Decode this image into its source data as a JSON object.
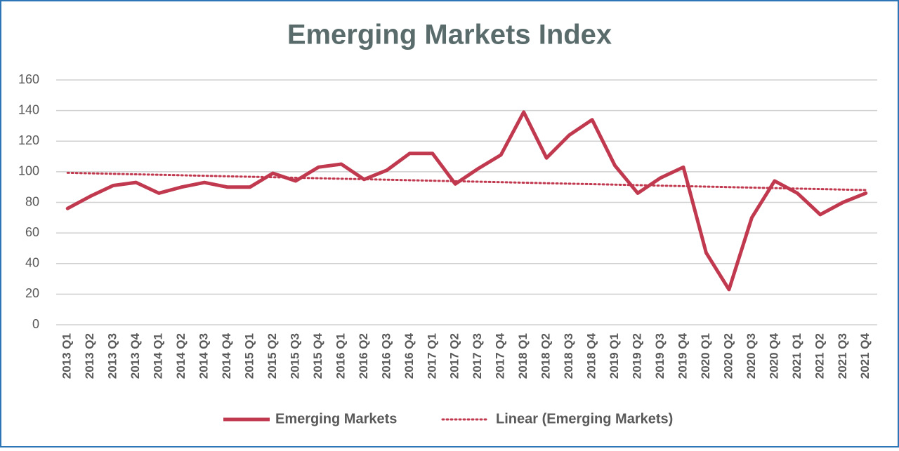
{
  "chart_data": {
    "type": "line",
    "title": "Emerging Markets Index",
    "categories": [
      "2013 Q1",
      "2013 Q2",
      "2013 Q3",
      "2013 Q4",
      "2014 Q1",
      "2014 Q2",
      "2014 Q3",
      "2014 Q4",
      "2015 Q1",
      "2015 Q2",
      "2015 Q3",
      "2015 Q4",
      "2016 Q1",
      "2016 Q2",
      "2016 Q3",
      "2016 Q4",
      "2017 Q1",
      "2017 Q2",
      "2017 Q3",
      "2017 Q4",
      "2018 Q1",
      "2018 Q2",
      "2018 Q3",
      "2018 Q4",
      "2019 Q1",
      "2019 Q2",
      "2019 Q3",
      "2019 Q4",
      "2020 Q1",
      "2020 Q2",
      "2020 Q3",
      "2020 Q4",
      "2021 Q1",
      "2021 Q2",
      "2021 Q3",
      "2021 Q4"
    ],
    "series": [
      {
        "name": "Emerging Markets",
        "color": "#c0394f",
        "values": [
          76,
          84,
          91,
          93,
          86,
          90,
          93,
          90,
          90,
          99,
          94,
          103,
          105,
          95,
          101,
          112,
          112,
          92,
          102,
          111,
          139,
          109,
          124,
          134,
          104,
          86,
          96,
          103,
          47,
          23,
          70,
          94,
          86,
          72,
          80,
          86
        ]
      }
    ],
    "trendline": {
      "name": "Linear (Emerging Markets)",
      "color": "#c0394f",
      "style": "dotted"
    },
    "ylim": [
      0,
      160
    ],
    "yticks": [
      0,
      20,
      40,
      60,
      80,
      100,
      120,
      140,
      160
    ],
    "grid": true,
    "legend": "bottom"
  }
}
